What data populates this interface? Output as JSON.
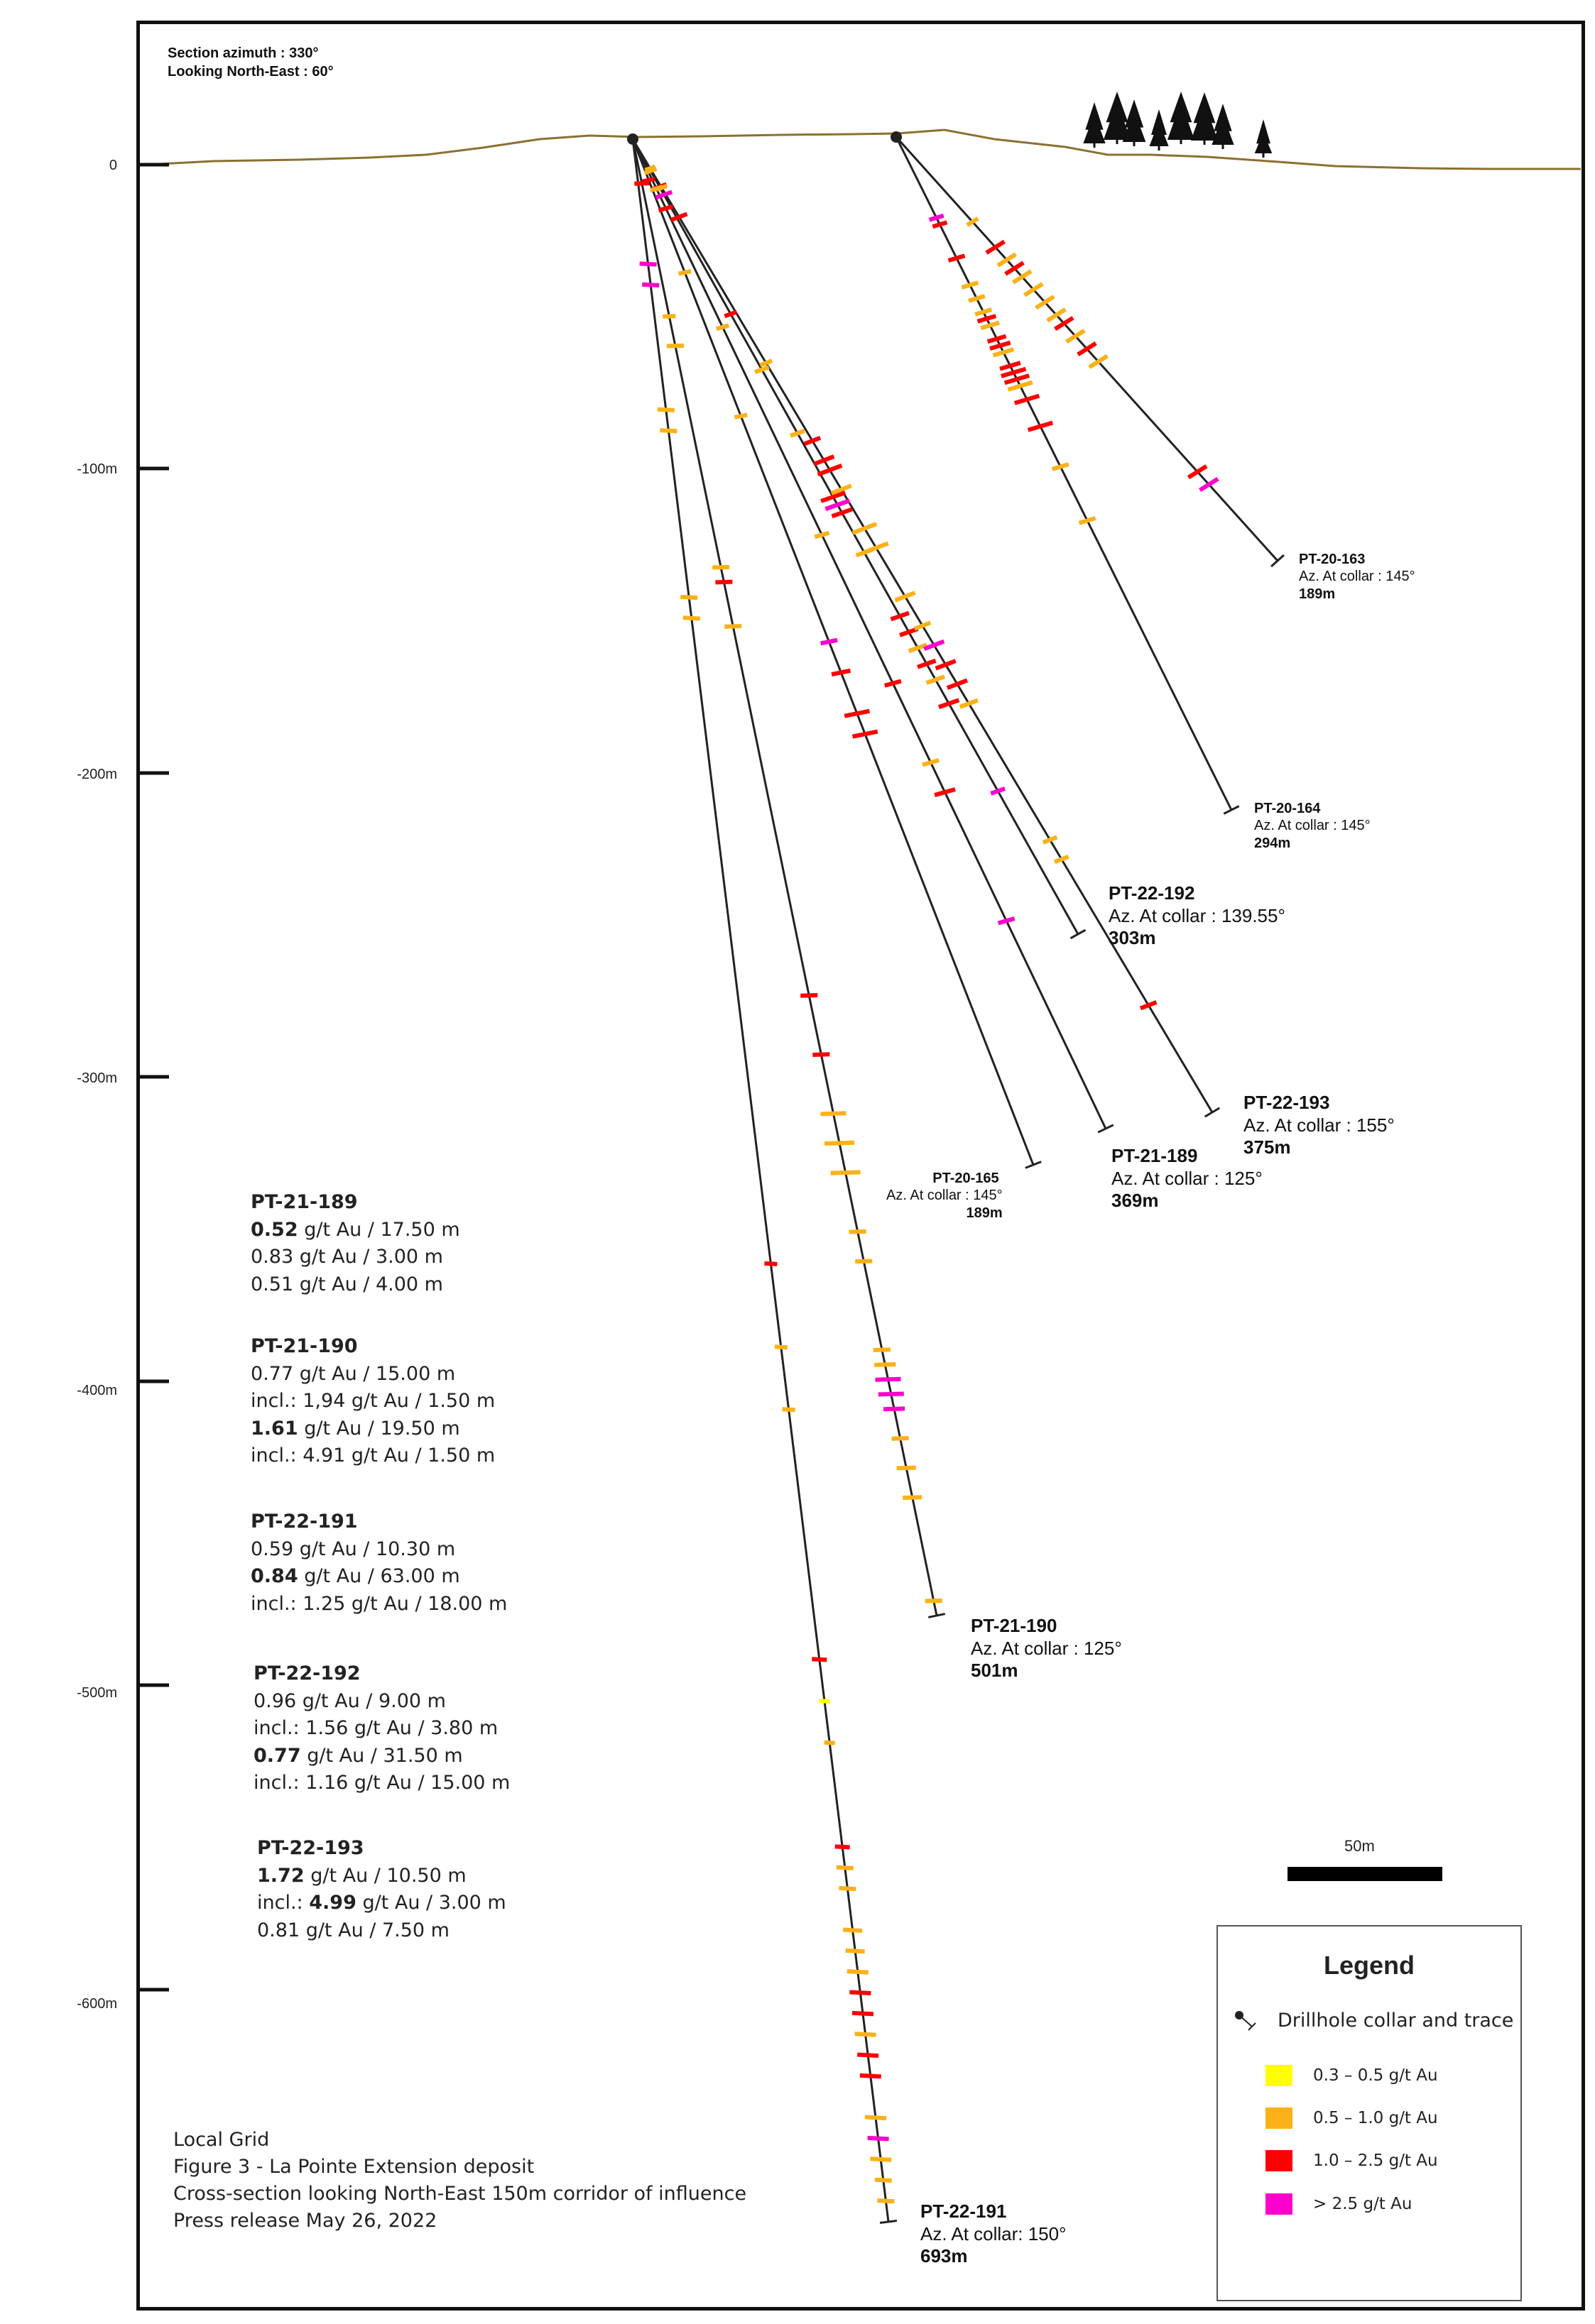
{
  "header": {
    "section_azimuth": "Section azimuth : 330°",
    "looking": "Looking North-East : 60°"
  },
  "y_axis": {
    "labels": [
      "0",
      "-100m",
      "-200m",
      "-300m",
      "-400m",
      "-500m",
      "-600m"
    ]
  },
  "drillholes": {
    "pt20163": {
      "name": "PT-20-163",
      "az": "Az. At collar : 145°",
      "len": "189m"
    },
    "pt20164": {
      "name": "PT-20-164",
      "az": "Az. At collar : 145°",
      "len": "294m"
    },
    "pt22192": {
      "name": "PT-22-192",
      "az": "Az. At collar : 139.55°",
      "len": "303m"
    },
    "pt22193": {
      "name": "PT-22-193",
      "az": "Az.  At collar : 155°",
      "len": "375m"
    },
    "pt21189": {
      "name": "PT-21-189",
      "az": "Az. At collar : 125°",
      "len": "369m"
    },
    "pt20165": {
      "name": "PT-20-165",
      "az": "Az. At collar : 145°",
      "len": "189m"
    },
    "pt21190": {
      "name": "PT-21-190",
      "az": "Az. At collar : 125°",
      "len": "501m"
    },
    "pt22191": {
      "name": "PT-22-191",
      "az": "Az. At collar: 150°",
      "len": "693m"
    }
  },
  "results": {
    "r189": {
      "title": "PT-21-189",
      "l1v": "0.52",
      "l1r": " g/t Au / 17.50 m",
      "l2": "0.83 g/t Au / 3.00 m",
      "l3": "0.51 g/t Au / 4.00 m"
    },
    "r190": {
      "title": "PT-21-190",
      "l1": "0.77 g/t Au / 15.00 m",
      "l2": "incl.: 1,94 g/t Au / 1.50 m",
      "l3v": "1.61",
      "l3r": " g/t Au / 19.50 m",
      "l4": "incl.: 4.91 g/t Au / 1.50 m"
    },
    "r191": {
      "title": "PT-22-191",
      "l1": "0.59 g/t Au / 10.30 m",
      "l2v": "0.84",
      "l2r": " g/t Au / 63.00 m",
      "l3": "incl.: 1.25 g/t Au / 18.00 m"
    },
    "r192": {
      "title": "PT-22-192",
      "l1": "0.96 g/t Au / 9.00 m",
      "l2": "incl.: 1.56 g/t Au / 3.80 m",
      "l3v": "0.77",
      "l3r": " g/t Au / 31.50 m",
      "l4": "incl.: 1.16 g/t Au / 15.00 m"
    },
    "r193": {
      "title": "PT-22-193",
      "l1v": "1.72",
      "l1r": " g/t Au / 10.50 m",
      "l2p": "incl.: ",
      "l2v": "4.99",
      "l2r": " g/t Au / 3.00 m",
      "l3": "0.81 g/t Au / 7.50 m"
    }
  },
  "notes": {
    "grid": "Local Grid",
    "figure": "Figure 3 - La Pointe Extension deposit",
    "caption": "Cross-section looking North-East 150m corridor of influence",
    "release": "Press release  May 26, 2022"
  },
  "scale": {
    "label": "50m"
  },
  "legend": {
    "title": "Legend",
    "collar": "Drillhole collar and trace",
    "items": [
      {
        "label": "0.3 – 0.5 g/t Au",
        "color": "#ffff00"
      },
      {
        "label": "0.5 – 1.0 g/t Au",
        "color": "#fbb117"
      },
      {
        "label": "1.0 – 2.5 g/t Au",
        "color": "#ff0000"
      },
      {
        "label": "> 2.5 g/t Au",
        "color": "#ff00cc"
      }
    ]
  },
  "colors": {
    "topo": "#8b7030",
    "trace": "#222222",
    "g1": "#ffff00",
    "g2": "#fbb117",
    "g3": "#ff0000",
    "g4": "#ff00cc"
  }
}
